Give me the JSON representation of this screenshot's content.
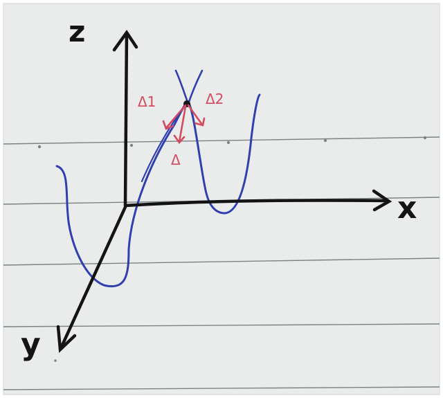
{
  "axes": {
    "x_label": "x",
    "y_label": "y",
    "z_label": "z"
  },
  "annotations": {
    "delta_1": "Δ1",
    "delta_2": "Δ2",
    "delta": "Δ"
  },
  "colors": {
    "paper": "#e9eceb",
    "ruled_line": "#6f7776",
    "ink_black": "#141414",
    "ink_blue": "#2f3fb0",
    "ink_red": "#d44a5e"
  }
}
